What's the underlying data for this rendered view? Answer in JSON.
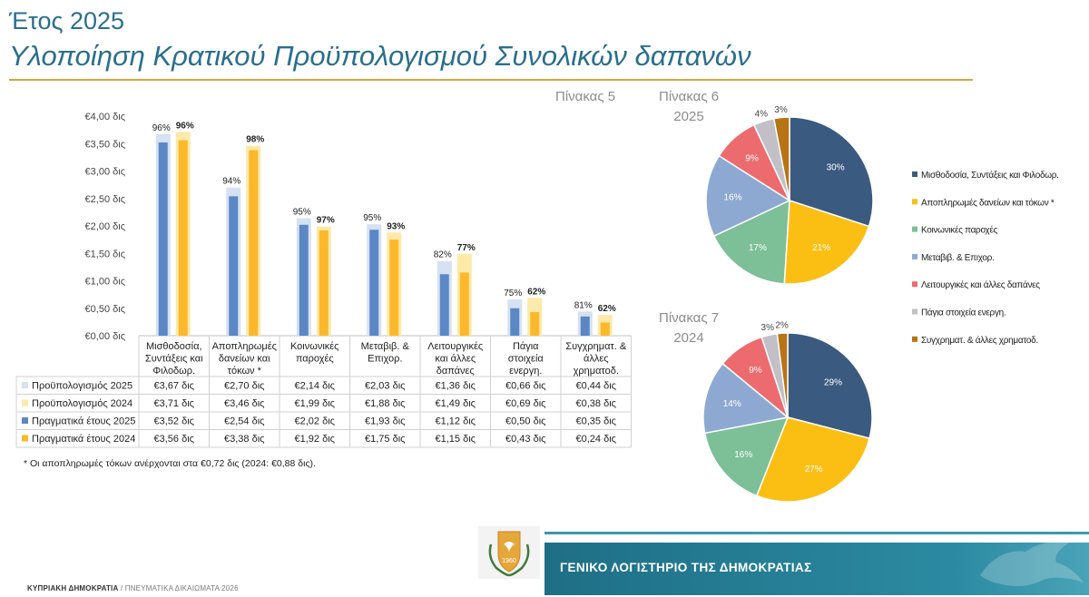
{
  "header": {
    "year": "Έτος 2025",
    "title": "Υλοποίηση Κρατικού Προϋπολογισμού Συνολικών δαπανών"
  },
  "labels": {
    "table5": "Πίνακας 5",
    "table6_line1": "Πίνακας 6",
    "table6_line2": "2025",
    "table7_line1": "Πίνακας 7",
    "table7_line2": "2024"
  },
  "footnote": "* Οι αποπληρωμές τόκων ανέρχονται στα €0,72 δις (2024: €0,88 δις).",
  "footer": {
    "left_bold": "ΚΥΠΡΙΑΚΗ ΔΗΜΟΚΡΑΤΙΑ",
    "left_light": " / ΠΝΕΥΜΑΤΙΚΑ ΔΙΚΑΙΩΜΑΤΑ 2026",
    "org_name": "ΓΕΝΙΚΟ ΛΟΓΙΣΤΗΡΙΟ ΤΗΣ ΔΗΜΟΚΡΑΤΙΑΣ"
  },
  "colors": {
    "budget2025": "#d6e1f1",
    "budget2024": "#fde9a9",
    "actual2025": "#5b87c5",
    "actual2024": "#fbb82b",
    "brand_teal": "#1e6f86",
    "title_blue": "#2a6f8c"
  },
  "chart_data": [
    {
      "type": "bar",
      "yticks": [
        "€4,00 δις",
        "€3,50 δις",
        "€3,00 δις",
        "€2,50 δις",
        "€2,00 δις",
        "€1,50 δις",
        "€1,00 δις",
        "€0,50 δις",
        "€0,00 δις"
      ],
      "ylim": [
        0,
        4
      ],
      "categories": [
        [
          "Μισθοδοσία,",
          "Συντάξεις και",
          "Φιλοδωρ."
        ],
        [
          "Αποπληρωμές",
          "δανείων και",
          "τόκων *"
        ],
        [
          "Κοινωνικές",
          "παροχές"
        ],
        [
          "Μεταβιβ. &",
          "Επιχορ."
        ],
        [
          "Λειτουργικές",
          "και άλλες",
          "δαπάνες"
        ],
        [
          "Πάγια",
          "στοιχεία",
          "ενεργη."
        ],
        [
          "Συγχρηματ. &",
          "άλλες",
          "χρηματοδ."
        ]
      ],
      "series": [
        {
          "name": "Προϋπολογισμός 2025",
          "values": [
            3.67,
            2.7,
            2.14,
            2.03,
            1.36,
            0.66,
            0.44
          ],
          "labels": [
            "€3,67 δις",
            "€2,70 δις",
            "€2,14 δις",
            "€2,03 δις",
            "€1,36 δις",
            "€0,66 δις",
            "€0,44 δις"
          ]
        },
        {
          "name": "Προϋπολογισμός 2024",
          "values": [
            3.71,
            3.46,
            1.99,
            1.88,
            1.49,
            0.69,
            0.38
          ],
          "labels": [
            "€3,71 δις",
            "€3,46 δις",
            "€1,99 δις",
            "€1,88 δις",
            "€1,49 δις",
            "€0,69 δις",
            "€0,38 δις"
          ]
        },
        {
          "name": "Πραγματικά έτους 2025",
          "values": [
            3.52,
            2.54,
            2.02,
            1.93,
            1.12,
            0.5,
            0.35
          ],
          "labels": [
            "€3,52 δις",
            "€2,54 δις",
            "€2,02 δις",
            "€1,93 δις",
            "€1,12 δις",
            "€0,50 δις",
            "€0,35 δις"
          ]
        },
        {
          "name": "Πραγματικά έτους 2024",
          "values": [
            3.56,
            3.38,
            1.92,
            1.75,
            1.15,
            0.43,
            0.24
          ],
          "labels": [
            "€3,56 δις",
            "€3,38 δις",
            "€1,92 δις",
            "€1,75 δις",
            "€1,15 δις",
            "€0,43 δις",
            "€0,24 δις"
          ]
        }
      ],
      "pct_2025": [
        "96%",
        "94%",
        "95%",
        "95%",
        "82%",
        "75%",
        "81%"
      ],
      "pct_2024": [
        "96%",
        "98%",
        "97%",
        "93%",
        "77%",
        "62%",
        "62%"
      ]
    },
    {
      "type": "pie",
      "title": "2025",
      "categories": [
        "Μισθοδοσία, Συντάξεις και Φιλοδωρ.",
        "Αποπληρωμές δανείων και τόκων *",
        "Κοινωνικές παροχές",
        "Μεταβιβ. & Επιχορ.",
        "Λειτουργικές και άλλες δαπάνες",
        "Πάγια στοιχεία ενεργη.",
        "Συγχρηματ. & άλλες χρηματοδ."
      ],
      "values": [
        30,
        21,
        17,
        16,
        9,
        4,
        3
      ],
      "labels": [
        "30%",
        "21%",
        "17%",
        "16%",
        "9%",
        "4%",
        "3%"
      ],
      "colors": [
        "#3b5a80",
        "#fbbf14",
        "#7dbf97",
        "#8ea9d1",
        "#ec6b6e",
        "#c2bfc6",
        "#b77415"
      ]
    },
    {
      "type": "pie",
      "title": "2024",
      "categories": [
        "Μισθοδοσία, Συντάξεις και Φιλοδωρ.",
        "Αποπληρωμές δανείων και τόκων *",
        "Κοινωνικές παροχές",
        "Μεταβιβ. & Επιχορ.",
        "Λειτουργικές και άλλες δαπάνες",
        "Πάγια στοιχεία ενεργη.",
        "Συγχρηματ. & άλλες χρηματοδ."
      ],
      "values": [
        29,
        27,
        16,
        14,
        9,
        3,
        2
      ],
      "labels": [
        "29%",
        "27%",
        "16%",
        "14%",
        "9%",
        "3%",
        "2%"
      ],
      "colors": [
        "#3b5a80",
        "#fbbf14",
        "#7dbf97",
        "#8ea9d1",
        "#ec6b6e",
        "#c2bfc6",
        "#b77415"
      ]
    }
  ],
  "legend": {
    "items": [
      "Μισθοδοσία, Συντάξεις και Φιλοδωρ.",
      "Αποπληρωμές δανείων και τόκων *",
      "Κοινωνικές παροχές",
      "Μεταβιβ. & Επιχορ.",
      "Λειτουργικές και άλλες δαπάνες",
      "Πάγια στοιχεία ενεργη.",
      "Συγχρηματ. & άλλες χρηματοδ."
    ]
  }
}
